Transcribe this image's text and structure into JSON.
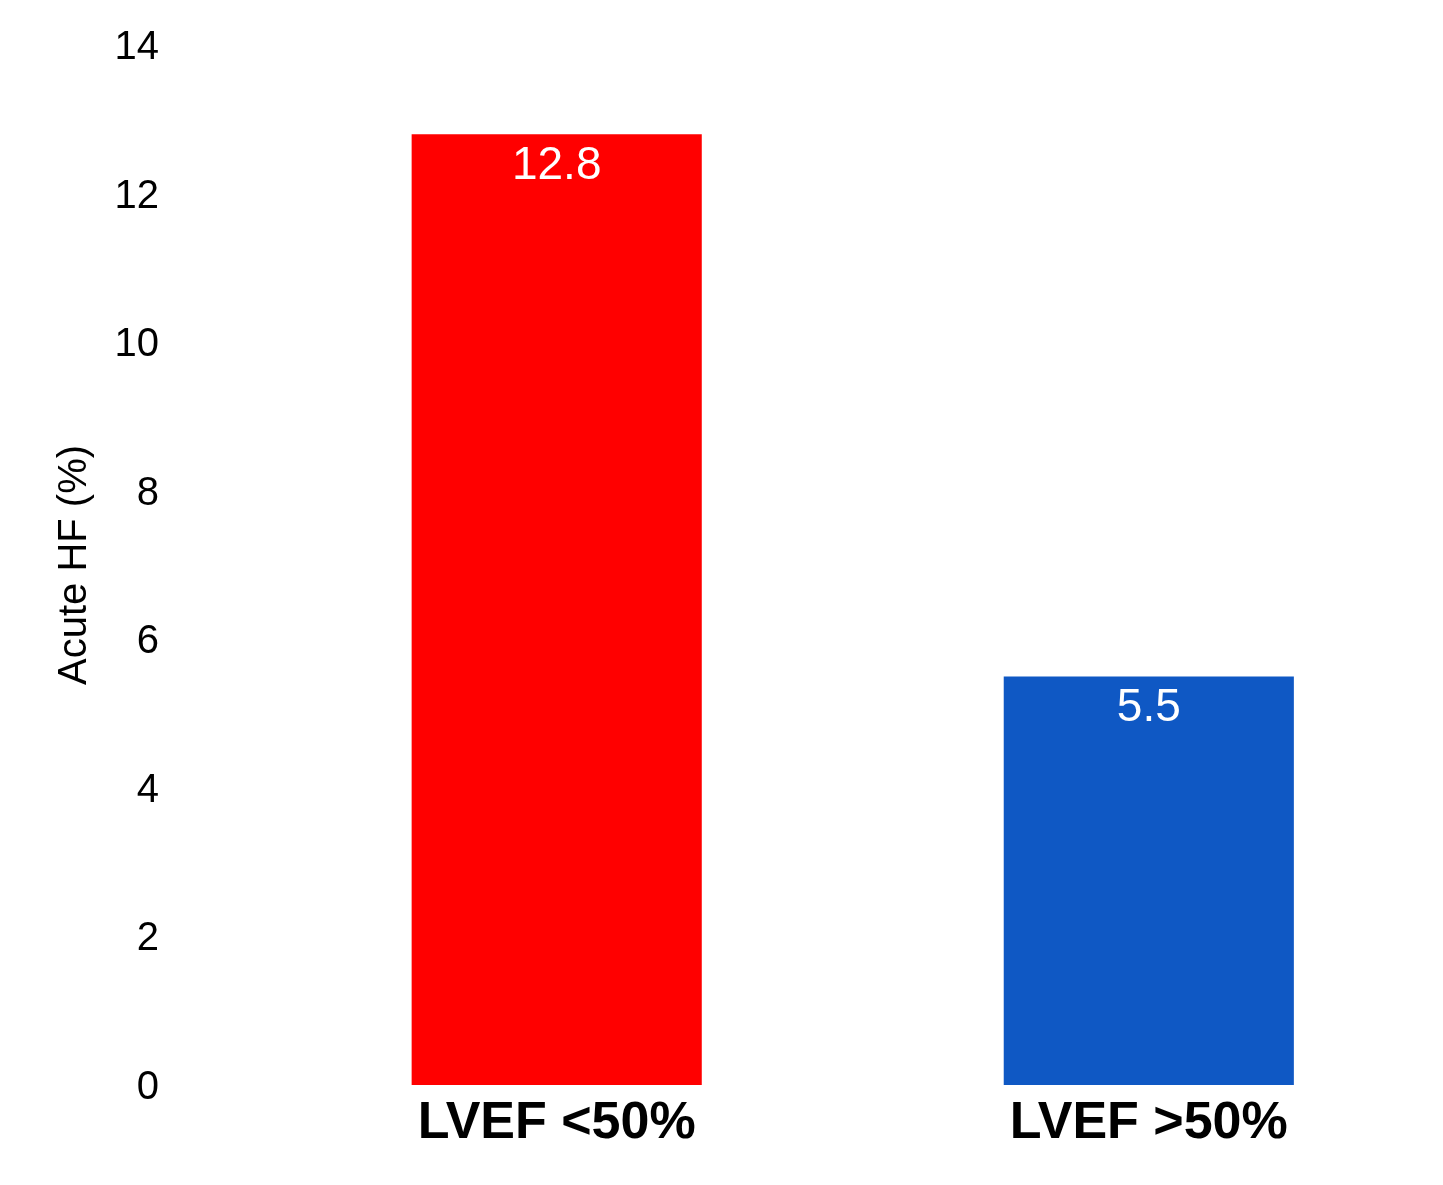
{
  "chart_data": {
    "type": "bar",
    "ylabel": "Acute HF (%)",
    "categories": [
      "LVEF <50%",
      "LVEF >50%"
    ],
    "values": [
      12.8,
      5.5
    ],
    "colors": [
      "#ff0000",
      "#0f58c4"
    ],
    "data_labels": true,
    "ylim": [
      0,
      14
    ],
    "yticks": [
      0,
      2,
      4,
      6,
      8,
      10,
      12,
      14
    ]
  }
}
